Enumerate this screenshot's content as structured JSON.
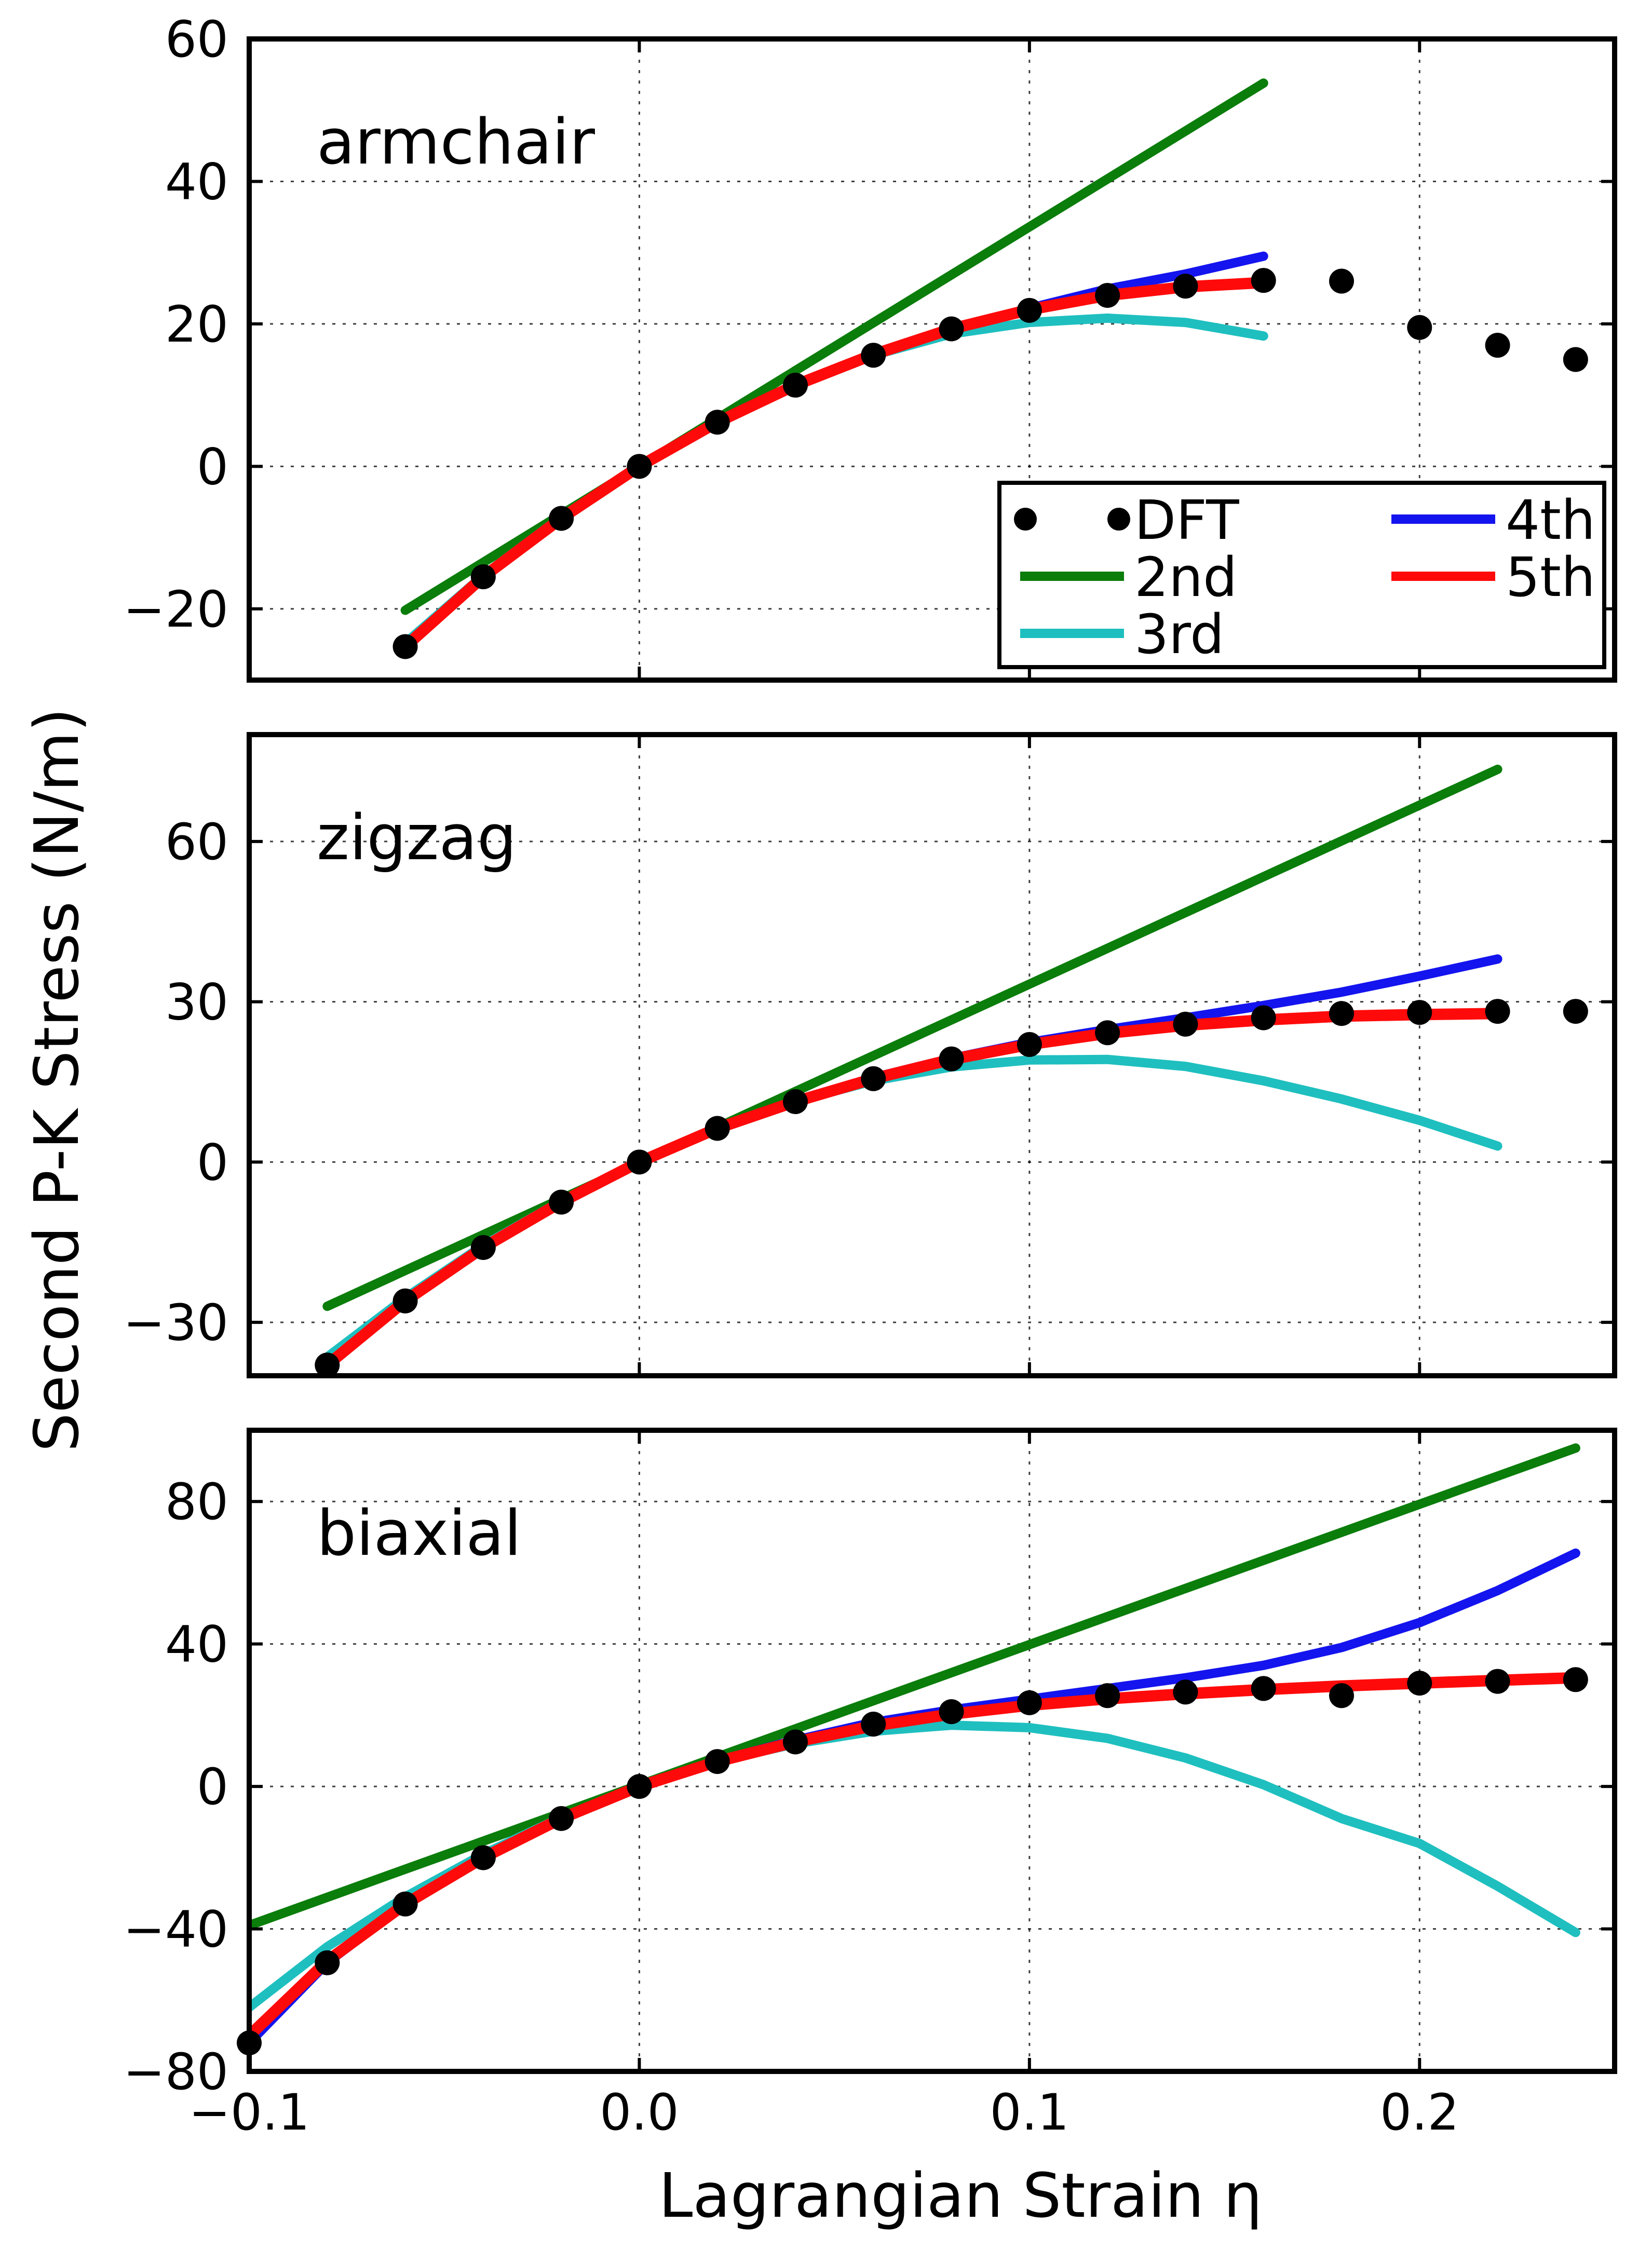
{
  "figure": {
    "ylabel": "Second P-K Stress (N/m)",
    "xlabel": "Lagrangian Strain η"
  },
  "legend": {
    "entries": [
      {
        "key": "dft",
        "label": "DFT"
      },
      {
        "key": "s2",
        "label": "2nd"
      },
      {
        "key": "s3",
        "label": "3rd"
      },
      {
        "key": "s4",
        "label": "4th"
      },
      {
        "key": "s5",
        "label": "5th"
      }
    ]
  },
  "colors": {
    "dft": "#000000",
    "s2": "#0a7d0a",
    "s3": "#1fbfbf",
    "s4": "#1414ee",
    "s5": "#ff0a0a"
  },
  "chart_data": [
    {
      "type": "line",
      "title": "armchair",
      "xlabel": "Lagrangian Strain η",
      "ylabel": "Second P-K Stress (N/m)",
      "xlim": [
        -0.1,
        0.25
      ],
      "ylim": [
        -30,
        60
      ],
      "xticks": [
        -0.1,
        0.0,
        0.1,
        0.2
      ],
      "xtick_labels": [
        "−0.1",
        "0.0",
        "0.1",
        "0.2"
      ],
      "yticks": [
        -20,
        0,
        20,
        40,
        60
      ],
      "ytick_labels": [
        "−20",
        "0",
        "20",
        "40",
        "60"
      ],
      "grid": true,
      "legend_position": "bottom-right",
      "scatter": {
        "name": "DFT",
        "x": [
          -0.06,
          -0.04,
          -0.02,
          0.0,
          0.02,
          0.04,
          0.06,
          0.08,
          0.1,
          0.12,
          0.14,
          0.16,
          0.18,
          0.2,
          0.22,
          0.24
        ],
        "y": [
          -25.3,
          -15.5,
          -7.3,
          0.0,
          6.2,
          11.4,
          15.6,
          19.3,
          21.9,
          24.0,
          25.3,
          26.1,
          26.0,
          19.5,
          17.0,
          15.0
        ]
      },
      "series": [
        {
          "name": "2nd",
          "x": [
            -0.06,
            0.16
          ],
          "y": [
            -20.2,
            53.8
          ]
        },
        {
          "name": "3rd",
          "x": [
            -0.06,
            -0.04,
            -0.02,
            0.0,
            0.02,
            0.04,
            0.06,
            0.08,
            0.1,
            0.12,
            0.14,
            0.16
          ],
          "y": [
            -24.8,
            -15.3,
            -7.1,
            0.0,
            6.3,
            11.5,
            15.6,
            18.6,
            20.2,
            20.8,
            20.2,
            18.3
          ]
        },
        {
          "name": "4th",
          "x": [
            -0.06,
            -0.04,
            -0.02,
            0.0,
            0.02,
            0.04,
            0.06,
            0.08,
            0.1,
            0.12,
            0.14,
            0.16
          ],
          "y": [
            -25.3,
            -15.5,
            -7.2,
            0.0,
            6.2,
            11.4,
            15.7,
            19.2,
            22.2,
            24.9,
            27.0,
            29.5
          ]
        },
        {
          "name": "5th",
          "x": [
            -0.06,
            -0.04,
            -0.02,
            0.0,
            0.02,
            0.04,
            0.06,
            0.08,
            0.1,
            0.12,
            0.14,
            0.16
          ],
          "y": [
            -25.3,
            -15.5,
            -7.3,
            0.0,
            6.2,
            11.4,
            15.7,
            19.3,
            22.0,
            24.0,
            25.2,
            25.8
          ]
        }
      ]
    },
    {
      "type": "line",
      "title": "zigzag",
      "xlabel": "Lagrangian Strain η",
      "ylabel": "Second P-K Stress (N/m)",
      "xlim": [
        -0.1,
        0.25
      ],
      "ylim": [
        -40,
        80
      ],
      "xticks": [
        -0.1,
        0.0,
        0.1,
        0.2
      ],
      "xtick_labels": [
        "−0.1",
        "0.0",
        "0.1",
        "0.2"
      ],
      "yticks": [
        -30,
        0,
        30,
        60
      ],
      "ytick_labels": [
        "−30",
        "0",
        "30",
        "60"
      ],
      "grid": true,
      "scatter": {
        "name": "DFT",
        "x": [
          -0.08,
          -0.06,
          -0.04,
          -0.02,
          0.0,
          0.02,
          0.04,
          0.06,
          0.08,
          0.1,
          0.12,
          0.14,
          0.16,
          0.18,
          0.2,
          0.22,
          0.24
        ],
        "y": [
          -38.0,
          -26.0,
          -16.0,
          -7.5,
          0.0,
          6.3,
          11.3,
          15.6,
          19.3,
          22.0,
          24.2,
          25.8,
          27.0,
          27.8,
          28.0,
          28.2,
          28.2
        ]
      },
      "series": [
        {
          "name": "2nd",
          "x": [
            -0.08,
            0.22
          ],
          "y": [
            -27.0,
            73.5
          ]
        },
        {
          "name": "3rd",
          "x": [
            -0.08,
            -0.06,
            -0.04,
            -0.02,
            0.0,
            0.02,
            0.04,
            0.06,
            0.08,
            0.1,
            0.12,
            0.14,
            0.16,
            0.18,
            0.2,
            0.22
          ],
          "y": [
            -36.5,
            -25.4,
            -15.6,
            -7.3,
            0.0,
            6.3,
            11.3,
            15.2,
            17.8,
            19.1,
            19.2,
            17.9,
            15.2,
            11.8,
            7.8,
            3.0
          ]
        },
        {
          "name": "4th",
          "x": [
            -0.08,
            -0.06,
            -0.04,
            -0.02,
            0.0,
            0.02,
            0.04,
            0.06,
            0.08,
            0.1,
            0.12,
            0.14,
            0.16,
            0.18,
            0.2,
            0.22
          ],
          "y": [
            -38.0,
            -26.0,
            -16.0,
            -7.5,
            0.0,
            6.3,
            11.4,
            15.8,
            19.4,
            22.4,
            24.8,
            27.0,
            29.3,
            31.8,
            34.8,
            38.0
          ]
        },
        {
          "name": "5th",
          "x": [
            -0.08,
            -0.06,
            -0.04,
            -0.02,
            0.0,
            0.02,
            0.04,
            0.06,
            0.08,
            0.1,
            0.12,
            0.14,
            0.16,
            0.18,
            0.2,
            0.22
          ],
          "y": [
            -38.0,
            -26.0,
            -16.0,
            -7.5,
            0.0,
            6.3,
            11.3,
            15.6,
            19.2,
            22.0,
            24.1,
            25.6,
            26.6,
            27.3,
            27.6,
            27.8
          ]
        }
      ]
    },
    {
      "type": "line",
      "title": "biaxial",
      "xlabel": "Lagrangian Strain η",
      "ylabel": "Second P-K Stress (N/m)",
      "xlim": [
        -0.1,
        0.25
      ],
      "ylim": [
        -80,
        100
      ],
      "xticks": [
        -0.1,
        0.0,
        0.1,
        0.2
      ],
      "xtick_labels": [
        "−0.1",
        "0.0",
        "0.1",
        "0.2"
      ],
      "yticks": [
        -80,
        -40,
        0,
        40,
        80
      ],
      "ytick_labels": [
        "−80",
        "−40",
        "0",
        "40",
        "80"
      ],
      "grid": true,
      "scatter": {
        "name": "DFT",
        "x": [
          -0.1,
          -0.08,
          -0.06,
          -0.04,
          -0.02,
          0.0,
          0.02,
          0.04,
          0.06,
          0.08,
          0.1,
          0.12,
          0.14,
          0.16,
          0.18,
          0.2,
          0.22,
          0.24
        ],
        "y": [
          -72.0,
          -49.5,
          -33.0,
          -20.0,
          -9.0,
          0.0,
          7.0,
          12.5,
          17.5,
          21.0,
          23.5,
          25.5,
          26.5,
          27.5,
          25.5,
          29.0,
          29.5,
          30.0
        ]
      },
      "series": [
        {
          "name": "2nd",
          "x": [
            -0.1,
            0.24
          ],
          "y": [
            -39.0,
            95.0
          ]
        },
        {
          "name": "3rd",
          "x": [
            -0.1,
            -0.08,
            -0.06,
            -0.04,
            -0.02,
            0.0,
            0.02,
            0.04,
            0.06,
            0.08,
            0.1,
            0.12,
            0.14,
            0.16,
            0.18,
            0.2,
            0.22,
            0.24
          ],
          "y": [
            -62.0,
            -45.0,
            -31.0,
            -19.0,
            -8.7,
            0.0,
            7.0,
            12.0,
            15.5,
            17.2,
            16.5,
            13.5,
            8.0,
            0.5,
            -9.0,
            -16.0,
            -28.0,
            -41.0
          ]
        },
        {
          "name": "4th",
          "x": [
            -0.1,
            -0.08,
            -0.06,
            -0.04,
            -0.02,
            0.0,
            0.02,
            0.04,
            0.06,
            0.08,
            0.1,
            0.12,
            0.14,
            0.16,
            0.18,
            0.2,
            0.22,
            0.24
          ],
          "y": [
            -72.0,
            -49.5,
            -33.0,
            -20.0,
            -9.0,
            0.0,
            7.2,
            13.0,
            18.0,
            21.5,
            24.5,
            27.5,
            30.5,
            34.0,
            39.0,
            46.0,
            55.0,
            65.5
          ]
        },
        {
          "name": "5th",
          "x": [
            -0.1,
            -0.08,
            -0.06,
            -0.04,
            -0.02,
            0.0,
            0.02,
            0.04,
            0.06,
            0.08,
            0.1,
            0.12,
            0.14,
            0.16,
            0.18,
            0.2,
            0.22,
            0.24
          ],
          "y": [
            -70.0,
            -49.0,
            -33.0,
            -20.0,
            -9.0,
            0.0,
            7.0,
            12.5,
            17.0,
            20.3,
            22.8,
            24.6,
            26.0,
            27.2,
            28.2,
            29.0,
            29.8,
            30.5
          ]
        }
      ]
    }
  ]
}
